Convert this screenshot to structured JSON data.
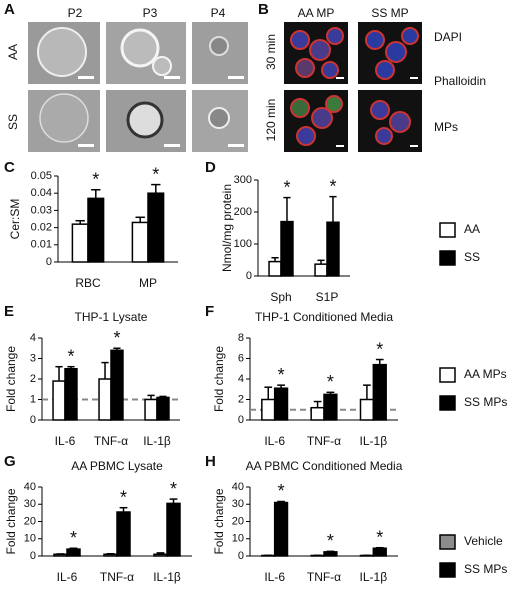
{
  "panel_letters": [
    "A",
    "B",
    "C",
    "D",
    "E",
    "F",
    "G",
    "H"
  ],
  "micrographs_a": {
    "columns": [
      "P2",
      "P3",
      "P4"
    ],
    "rows": [
      "AA",
      "SS"
    ]
  },
  "micrographs_b": {
    "columns": [
      "AA MP",
      "SS MP"
    ],
    "rows": [
      "30 min",
      "120 min"
    ],
    "channels": [
      {
        "name": "DAPI",
        "color": "#1f3fbf"
      },
      {
        "name": "Phalloidin",
        "color": "#d62020"
      },
      {
        "name": "MPs",
        "color": "#2a8a2a"
      }
    ]
  },
  "chart_data": [
    {
      "type": "bar",
      "ylabel": "Cer:SM",
      "categories": [
        "RBC",
        "MP"
      ],
      "series": [
        {
          "name": "AA",
          "color": "#ffffff",
          "values": [
            0.022,
            0.023
          ],
          "errors": [
            0.002,
            0.003
          ]
        },
        {
          "name": "SS",
          "color": "#000000",
          "values": [
            0.037,
            0.04
          ],
          "errors": [
            0.005,
            0.005
          ],
          "labels": [
            "*",
            "*"
          ]
        }
      ],
      "ylim": [
        0,
        0.05
      ],
      "yticks": [
        0,
        0.01,
        0.02,
        0.03,
        0.04,
        0.05
      ],
      "legend": "right"
    },
    {
      "type": "bar",
      "ylabel": "Nmol/mg protein",
      "categories": [
        "Sph",
        "S1P"
      ],
      "series": [
        {
          "color": "#ffffff",
          "values": [
            45,
            37
          ],
          "errors": [
            12,
            12
          ]
        },
        {
          "color": "#000000",
          "values": [
            170,
            168
          ],
          "errors": [
            75,
            80
          ],
          "labels": [
            "*",
            "*"
          ]
        }
      ],
      "ylim": [
        0,
        300
      ],
      "yticks": [
        0,
        100,
        200,
        300
      ]
    },
    {
      "type": "bar",
      "title": "THP-1 Lysate",
      "ylabel": "Fold change",
      "categories": [
        "IL-6",
        "TNF-α",
        "IL-1β"
      ],
      "series": [
        {
          "name": "AA MPs",
          "color": "#ffffff",
          "values": [
            1.9,
            2.0,
            1.0
          ],
          "errors": [
            0.7,
            0.8,
            0.2
          ]
        },
        {
          "name": "SS MPs",
          "color": "#000000",
          "values": [
            2.5,
            3.4,
            1.1
          ],
          "errors": [
            0.1,
            0.1,
            0.05
          ],
          "labels": [
            "*",
            "*",
            null
          ]
        }
      ],
      "ylim": [
        0,
        4
      ],
      "yticks": [
        0,
        1,
        2,
        3,
        4
      ],
      "refline": 1,
      "legend": "right"
    },
    {
      "type": "bar",
      "title": "THP-1 Conditioned Media",
      "ylabel": "Fold change",
      "categories": [
        "IL-6",
        "TNF-α",
        "IL-1β"
      ],
      "series": [
        {
          "color": "#ffffff",
          "values": [
            2.0,
            1.2,
            2.0
          ],
          "errors": [
            1.2,
            0.6,
            1.4
          ]
        },
        {
          "color": "#000000",
          "values": [
            3.1,
            2.5,
            5.4
          ],
          "errors": [
            0.3,
            0.2,
            0.5
          ],
          "labels": [
            "*",
            "*",
            "*"
          ]
        }
      ],
      "ylim": [
        0,
        8
      ],
      "yticks": [
        0,
        2,
        4,
        6,
        8
      ],
      "refline": 1
    },
    {
      "type": "bar",
      "title": "AA PBMC Lysate",
      "ylabel": "Fold change",
      "categories": [
        "IL-6",
        "TNF-α",
        "IL-1β"
      ],
      "series": [
        {
          "name": "Vehicle",
          "color": "#8c8c8c",
          "values": [
            1,
            1,
            1
          ],
          "errors": [
            0.2,
            0.3,
            0.8
          ]
        },
        {
          "name": "SS MPs",
          "color": "#000000",
          "values": [
            4,
            25.5,
            30.5
          ],
          "errors": [
            0.5,
            2.5,
            2.5
          ],
          "labels": [
            "*",
            "*",
            "*"
          ]
        }
      ],
      "ylim": [
        0,
        40
      ],
      "yticks": [
        0,
        10,
        20,
        30,
        40
      ],
      "legend": "right"
    },
    {
      "type": "bar",
      "title": "AA PBMC Conditioned Media",
      "ylabel": "Fold change",
      "categories": [
        "IL-6",
        "TNF-α",
        "IL-1β"
      ],
      "series": [
        {
          "color": "#8c8c8c",
          "values": [
            0.3,
            0.3,
            0.3
          ],
          "errors": [
            0.1,
            0.1,
            0.1
          ]
        },
        {
          "color": "#000000",
          "values": [
            31,
            2.4,
            4.5
          ],
          "errors": [
            0.6,
            0.3,
            0.3
          ],
          "labels": [
            "*",
            "*",
            "*"
          ]
        }
      ],
      "ylim": [
        0,
        40
      ],
      "yticks": [
        0,
        10,
        20,
        30,
        40
      ]
    }
  ]
}
